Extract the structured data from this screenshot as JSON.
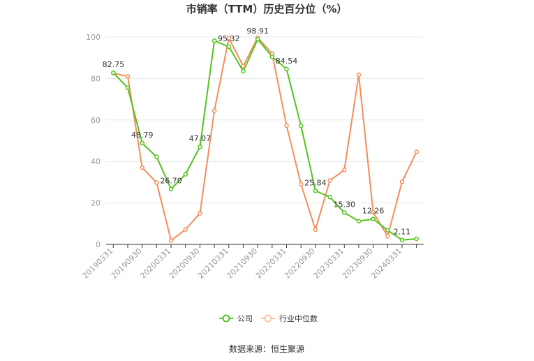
{
  "chart_data": {
    "type": "line",
    "title": "市销率（TTM）历史百分位（%）",
    "xlabel": "",
    "ylabel": "",
    "ylim": [
      0,
      100
    ],
    "yticks": [
      0,
      20,
      40,
      60,
      80,
      100
    ],
    "grid": true,
    "legend_position": "bottom",
    "x": [
      "20190331",
      "20190630",
      "20190930",
      "20191231",
      "20200331",
      "20200630",
      "20200930",
      "20201231",
      "20210331",
      "20210630",
      "20210930",
      "20211231",
      "20220331",
      "20220630",
      "20220930",
      "20221231",
      "20230331",
      "20230630",
      "20230930",
      "20231231",
      "20240331",
      "20240630"
    ],
    "x_tick_labels": [
      "20190331",
      "20190930",
      "20200331",
      "20200930",
      "20210331",
      "20210930",
      "20220331",
      "20220930",
      "20230331",
      "20230930",
      "20240331"
    ],
    "series": [
      {
        "name": "公司",
        "color": "#52c41a",
        "values": [
          82.75,
          75.5,
          48.79,
          42.2,
          26.7,
          33.8,
          47.07,
          98.2,
          95.32,
          83.5,
          98.91,
          90.5,
          84.54,
          57.2,
          25.84,
          22.8,
          15.3,
          11.2,
          12.26,
          6.8,
          2.11,
          2.7
        ],
        "labels": {
          "0": "82.75",
          "2": "48.79",
          "4": "26.70",
          "6": "47.07",
          "8": "95.32",
          "10": "98.91",
          "12": "84.54",
          "14": "25.84",
          "16": "15.30",
          "18": "12.26",
          "20": "2.11"
        }
      },
      {
        "name": "行业中位数",
        "color": "#f58d5b",
        "values": [
          82.6,
          81.0,
          37.0,
          29.8,
          1.9,
          7.2,
          15.0,
          64.5,
          99.5,
          86.0,
          99.7,
          92.0,
          57.3,
          29.0,
          7.1,
          30.8,
          35.9,
          81.8,
          15.5,
          3.9,
          30.2,
          44.6
        ]
      }
    ]
  },
  "source_text": "数据来源：恒生聚源"
}
